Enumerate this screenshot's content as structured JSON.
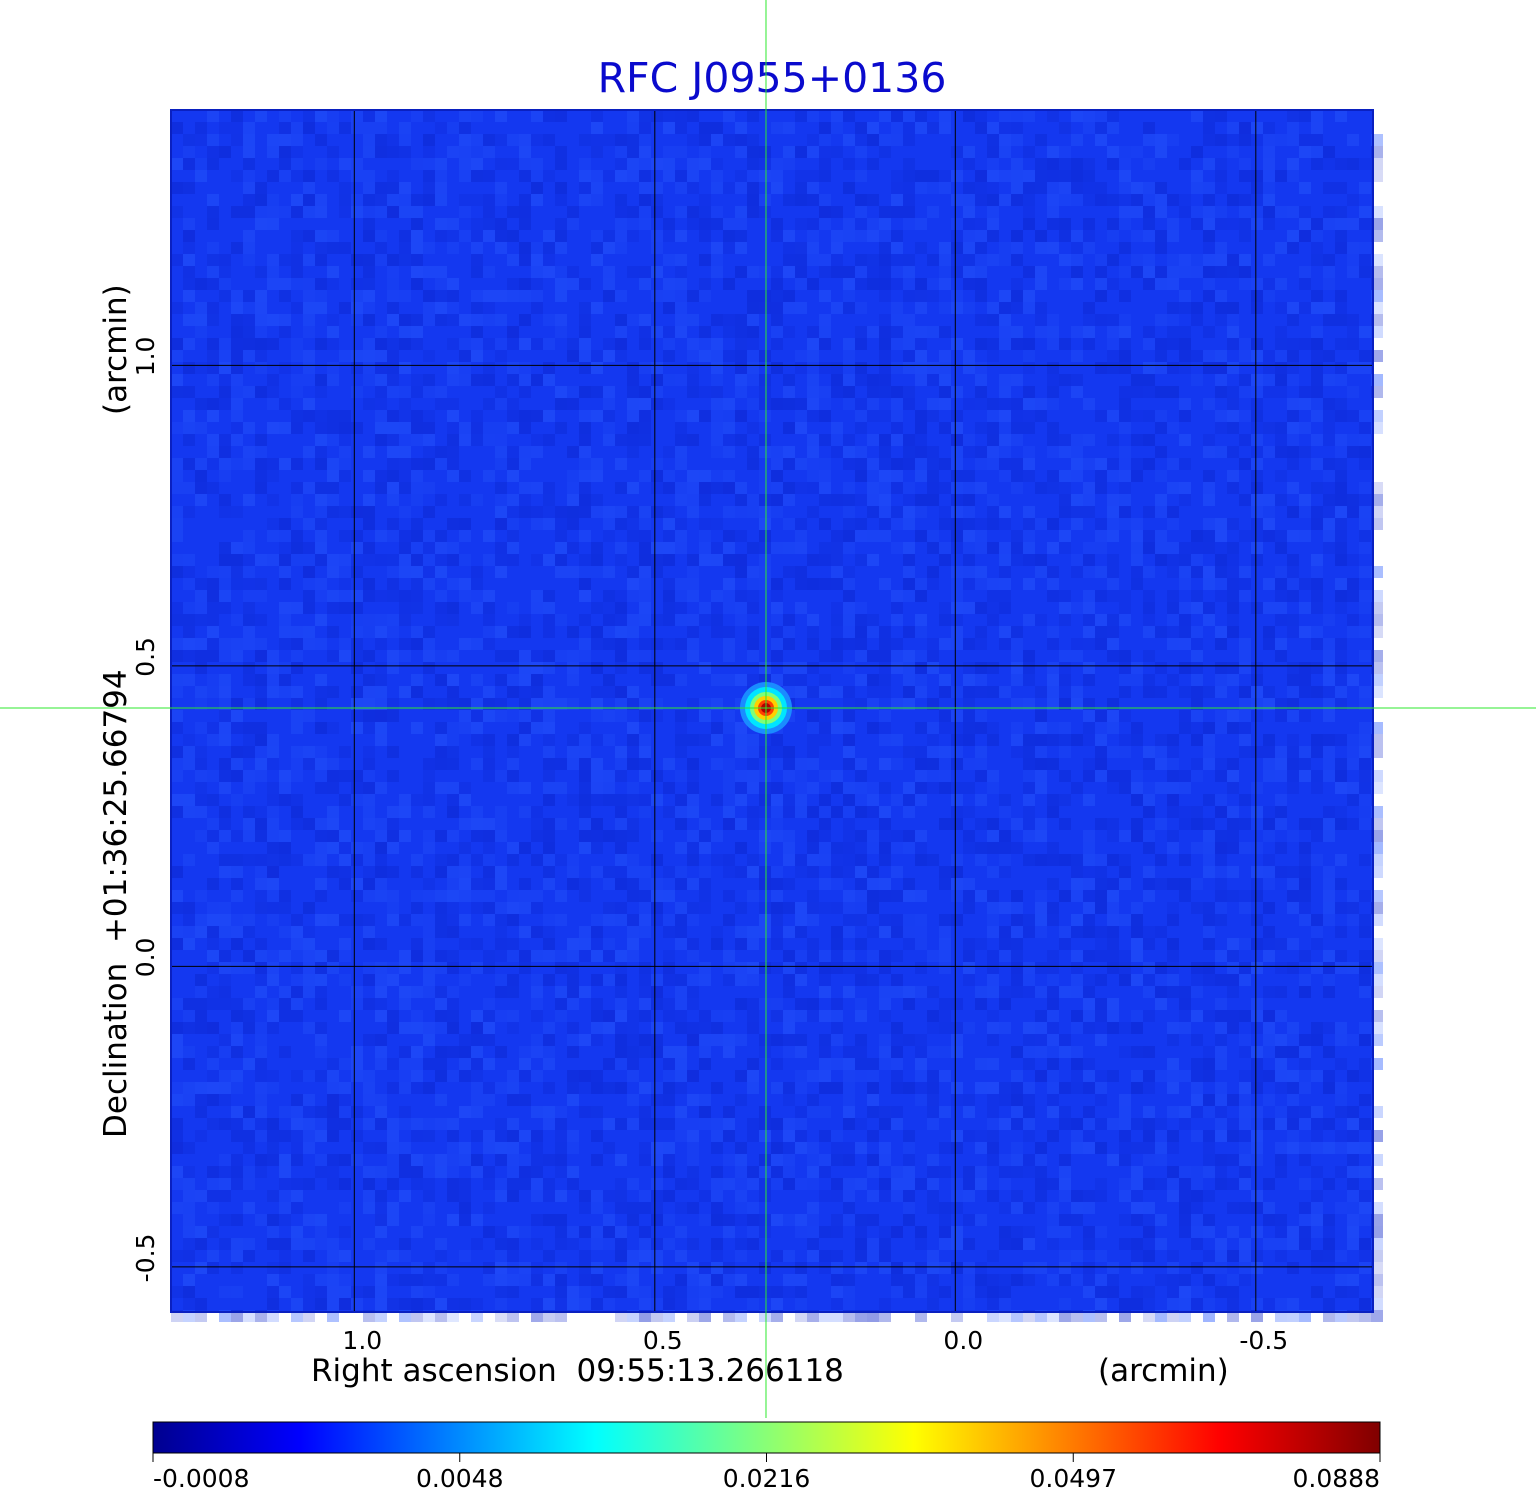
{
  "chart_data": {
    "type": "heatmap",
    "title": "RFC J0955+0136",
    "xlabel": "Right ascension  09:55:13.266118",
    "xunit": "(arcmin)",
    "ylabel": "Declination  +01:36:25.66794",
    "yunit": "(arcmin)",
    "x_ticks": [
      1.0,
      0.5,
      0.0,
      -0.5
    ],
    "x_tick_labels": [
      "1.0",
      "0.5",
      "0.0",
      "-0.5"
    ],
    "y_ticks": [
      1.0,
      0.5,
      0.0,
      -0.5
    ],
    "y_tick_labels": [
      "1.0",
      "0.5",
      "0.0",
      "-0.5"
    ],
    "xlim": [
      1.305,
      -0.695
    ],
    "ylim": [
      -0.575,
      1.425
    ],
    "grid": true,
    "crosshair": {
      "x": 0.315,
      "y": 0.43
    },
    "source": {
      "x": 0.315,
      "y": 0.43,
      "peak": 0.0888
    },
    "colormap": "jet",
    "colorbar": {
      "ticks": [
        -0.0008,
        0.0048,
        0.0216,
        0.0497,
        0.0888
      ],
      "tick_labels": [
        "-0.0008",
        "0.0048",
        "0.0216",
        "0.0497",
        "0.0888"
      ],
      "min": -0.0008,
      "max": 0.0888
    },
    "colors": {
      "title": "#0a0acd",
      "grid": "#000000",
      "crosshair": "#2ee82e",
      "background_field": "#1438f0"
    }
  }
}
